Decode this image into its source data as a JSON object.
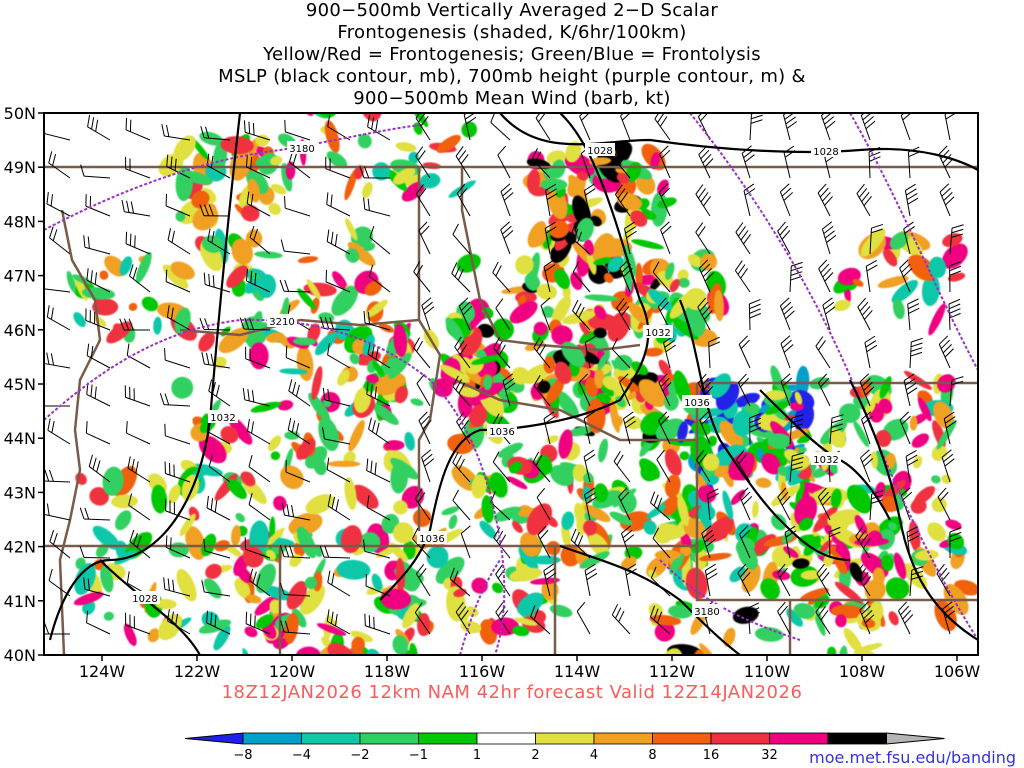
{
  "title_lines": [
    "900−500mb Vertically Averaged 2−D Scalar",
    "Frontogenesis (shaded, K/6hr/100km)",
    "Yellow/Red = Frontogenesis;  Green/Blue = Frontolysis",
    "MSLP (black contour, mb), 700mb height (purple contour, m) &",
    "900−500mb Mean Wind (barb, kt)"
  ],
  "valid_text": "18Z12JAN2026 12km NAM 42hr forecast Valid 12Z14JAN2026",
  "site_text": "moe.met.fsu.edu/banding",
  "lat_labels": [
    "50N",
    "49N",
    "48N",
    "47N",
    "46N",
    "45N",
    "44N",
    "43N",
    "42N",
    "41N",
    "40N"
  ],
  "lon_labels": [
    "124W",
    "122W",
    "120W",
    "118W",
    "116W",
    "114W",
    "112W",
    "110W",
    "108W",
    "106W"
  ],
  "contour_labels": {
    "mslp": [
      "1028",
      "1028",
      "1032",
      "1036",
      "1032",
      "1036",
      "1036",
      "1028",
      "1032"
    ],
    "height": [
      "3180",
      "3210",
      "3180"
    ]
  },
  "colorbar": {
    "ticks": [
      "−8",
      "−4",
      "−2",
      "−1",
      "1",
      "2",
      "4",
      "8",
      "16",
      "32"
    ],
    "colors": [
      "#2020e8",
      "#00a0c8",
      "#10c8a8",
      "#30d060",
      "#00c800",
      "#ffffff",
      "#e0e040",
      "#f0a020",
      "#f06010",
      "#f03040",
      "#f00080",
      "#000000",
      "#b4b4b4"
    ]
  },
  "colors": {
    "border": "#7a5a48",
    "mslp": "#000000",
    "height": "#9a30c8",
    "valid_text": "#ff5a5a",
    "site_text": "#3333dd"
  }
}
